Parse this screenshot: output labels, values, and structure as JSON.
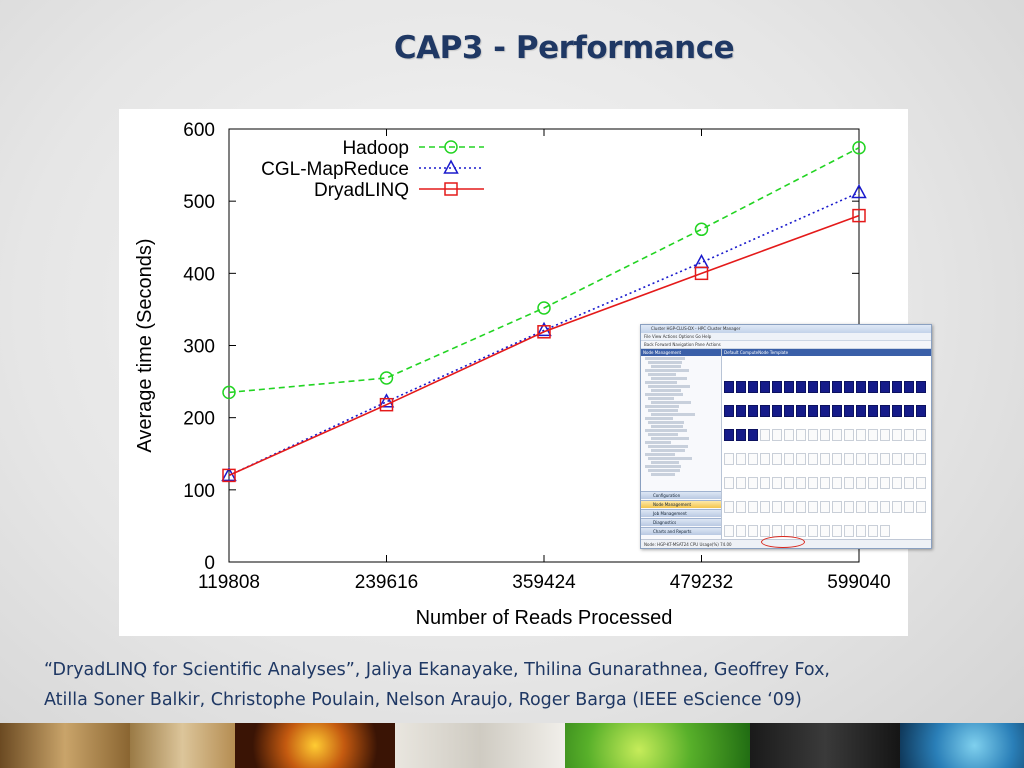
{
  "slide": {
    "title": "CAP3 - Performance",
    "citation_line1": "“DryadLINQ for Scientific Analyses”, Jaliya Ekanayake, Thilina Gunarathnea, Geoffrey Fox,",
    "citation_line2": "Atilla Soner Balkir, Christophe Poulain, Nelson Araujo, Roger Barga (IEEE eScience ‘09)"
  },
  "chart_data": {
    "type": "line",
    "title": "",
    "xlabel": "Number of Reads Processed",
    "ylabel": "Average time (Seconds)",
    "x": [
      119808,
      239616,
      359424,
      479232,
      599040
    ],
    "x_tick_labels": [
      "119808",
      "239616",
      "359424",
      "479232",
      "599040"
    ],
    "y_ticks": [
      0,
      100,
      200,
      300,
      400,
      500,
      600
    ],
    "ylim": [
      0,
      600
    ],
    "grid": false,
    "legend_position": "top-left",
    "series": [
      {
        "name": "Hadoop",
        "values": [
          235,
          255,
          352,
          461,
          574
        ],
        "color": "#22d422",
        "marker": "circle",
        "dash": "dashed"
      },
      {
        "name": "CGL-MapReduce",
        "values": [
          120,
          222,
          321,
          415,
          512
        ],
        "color": "#1a1acc",
        "marker": "triangle",
        "dash": "dotted"
      },
      {
        "name": "DryadLINQ",
        "values": [
          120,
          218,
          319,
          400,
          480
        ],
        "color": "#e41a1a",
        "marker": "square",
        "dash": "solid"
      }
    ]
  },
  "inset_screenshot": {
    "window_title": "Cluster HGP-CLUS-DX - HPC Cluster Manager",
    "menu": "File  View  Actions  Options  Go  Help",
    "toolbar": "Back  Forward  Navigation Pane  Actions",
    "nav_header": "Node Management",
    "main_header": "Default ComputeNode Template",
    "nav_buttons": [
      "Configuration",
      "Node Management",
      "Job Management",
      "Diagnostics",
      "Charts and Reports"
    ],
    "status_text": "Node: HGP-KT-MSAT24   CPU Usage(%)   74.00"
  }
}
